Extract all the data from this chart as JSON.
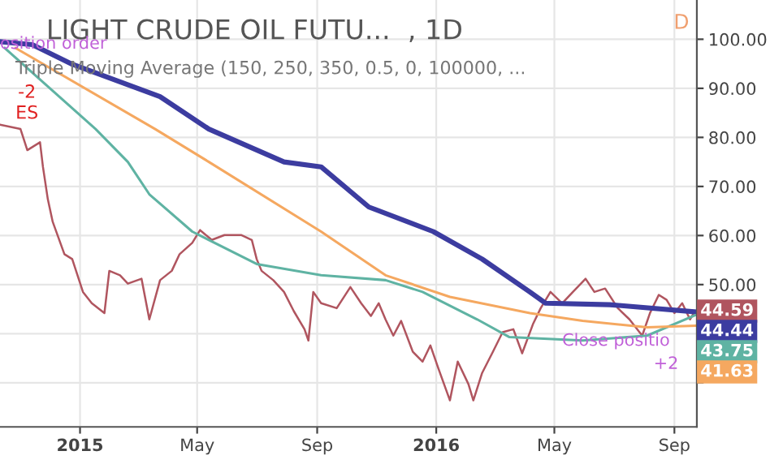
{
  "chart_data": {
    "type": "line",
    "title": "LIGHT CRUDE OIL FUTU...  , 1D",
    "subtitle": "Triple Moving Average (150, 250, 350, 0.5, 0, 100000, ...",
    "series": [
      {
        "color": "#b0555f",
        "x": [
          "2014-10-11",
          "2014-11-01",
          "2014-11-08",
          "2014-11-21",
          "2014-11-24",
          "2014-11-29",
          "2014-12-04",
          "2014-12-16",
          "2014-12-24",
          "2015-01-04",
          "2015-01-13",
          "2015-01-26",
          "2015-01-31",
          "2015-02-11",
          "2015-02-19",
          "2015-03-05",
          "2015-03-13",
          "2015-03-24",
          "2015-04-05",
          "2015-04-13",
          "2015-04-26",
          "2015-05-04",
          "2015-05-16",
          "2015-05-29",
          "2015-06-15",
          "2015-06-26",
          "2015-07-01",
          "2015-07-06",
          "2015-07-18",
          "2015-07-29",
          "2015-08-08",
          "2015-08-19",
          "2015-08-23",
          "2015-08-28",
          "2015-09-05",
          "2015-09-21",
          "2015-10-05",
          "2015-10-16",
          "2015-10-26",
          "2015-11-03",
          "2015-11-10",
          "2015-11-18",
          "2015-11-26",
          "2015-12-08",
          "2015-12-18",
          "2015-12-26",
          "2016-01-03",
          "2016-01-15",
          "2016-01-23",
          "2016-02-03",
          "2016-02-08",
          "2016-02-17",
          "2016-02-28",
          "2016-03-09",
          "2016-03-20",
          "2016-03-29",
          "2016-04-09",
          "2016-04-17",
          "2016-04-27",
          "2016-05-09",
          "2016-05-20",
          "2016-06-02",
          "2016-06-11",
          "2016-06-22",
          "2016-07-05",
          "2016-07-17",
          "2016-07-30",
          "2016-08-07",
          "2016-08-16",
          "2016-08-24",
          "2016-09-01",
          "2016-09-09",
          "2016-09-17",
          "2016-09-22"
        ],
        "values": [
          82.6,
          81.7,
          77.4,
          79,
          74,
          67.4,
          62.8,
          56.2,
          55.2,
          48.5,
          46.2,
          44.2,
          52.8,
          51.9,
          50.2,
          51.2,
          42.9,
          50.9,
          52.8,
          56.2,
          58.5,
          61.1,
          59.1,
          60.1,
          60.1,
          59.1,
          55.2,
          52.8,
          50.9,
          48.5,
          44.6,
          40.9,
          38.6,
          48.5,
          46.2,
          45.2,
          49.5,
          46.2,
          43.6,
          46.2,
          42.9,
          39.6,
          42.6,
          36.3,
          34.3,
          37.6,
          33.0,
          26.4,
          34.3,
          29.7,
          26.4,
          32.0,
          36.3,
          40.3,
          40.9,
          36.0,
          41.9,
          45.2,
          48.5,
          46.2,
          48.5,
          51.2,
          48.5,
          49.2,
          45.2,
          42.9,
          39.6,
          44.2,
          47.9,
          46.9,
          44.2,
          46.2,
          42.9,
          44.59
        ],
        "value_labels": [
          null,
          null,
          null,
          null,
          null,
          null,
          null,
          null,
          null,
          null,
          null,
          null,
          null,
          null,
          null,
          null,
          null,
          null,
          null,
          null,
          null,
          null,
          null,
          null,
          null,
          null,
          null,
          null,
          null,
          null,
          null,
          null,
          null,
          null,
          null,
          null,
          null,
          null,
          null,
          null,
          null,
          null,
          null,
          null,
          null,
          null,
          null,
          null,
          null,
          null,
          null,
          null,
          null,
          null,
          null,
          null,
          null,
          null,
          null,
          null,
          null,
          null,
          null,
          null,
          null,
          null,
          null,
          null,
          null,
          null,
          null,
          null,
          null,
          "44.59"
        ]
      },
      {
        "color": "#3c3ca0",
        "x": [
          "2014-10-11",
          "2014-11-13",
          "2014-12-24",
          "2015-03-24",
          "2015-05-13",
          "2015-07-29",
          "2015-09-05",
          "2015-10-24",
          "2015-12-29",
          "2016-02-17",
          "2016-04-06",
          "2016-04-22",
          "2016-06-27",
          "2016-09-22"
        ],
        "values": [
          99.5,
          98.9,
          94.9,
          88.3,
          81.7,
          75,
          74,
          65.8,
          60.8,
          55.2,
          48.5,
          46.2,
          45.9,
          44.44
        ],
        "value_labels": [
          null,
          null,
          null,
          null,
          null,
          null,
          null,
          null,
          null,
          null,
          null,
          null,
          null,
          "44.44"
        ]
      },
      {
        "color": "#5fb3a3",
        "x": [
          "2014-10-16",
          "2015-01-17",
          "2015-02-19",
          "2015-03-13",
          "2015-04-26",
          "2015-07-01",
          "2015-09-05",
          "2015-11-10",
          "2015-12-18",
          "2016-02-12",
          "2016-03-16",
          "2016-05-30",
          "2016-08-04",
          "2016-09-22"
        ],
        "values": [
          98.2,
          81.7,
          75,
          68.4,
          60.8,
          54.2,
          51.9,
          50.9,
          48.5,
          42.9,
          39.3,
          38.6,
          39.6,
          43.75
        ],
        "value_labels": [
          null,
          null,
          null,
          null,
          null,
          null,
          null,
          null,
          null,
          null,
          null,
          null,
          null,
          "43.75"
        ]
      },
      {
        "color": "#f5a860",
        "x": [
          "2014-10-27",
          "2015-03-19",
          "2015-05-13",
          "2015-09-05",
          "2015-11-10",
          "2016-01-15",
          "2016-04-06",
          "2016-05-30",
          "2016-08-04",
          "2016-09-22"
        ],
        "values": [
          98.2,
          81.7,
          75,
          60.8,
          51.9,
          47.5,
          44.2,
          42.6,
          41.3,
          41.63
        ],
        "value_labels": [
          null,
          null,
          null,
          null,
          null,
          null,
          null,
          null,
          null,
          "41.63"
        ]
      }
    ],
    "xlim": [
      "2014-10-11",
      "2016-09-24"
    ],
    "xticks": [
      {
        "value": "2015-01-01",
        "label": "2015"
      },
      {
        "value": "2015-05-01",
        "label": "May"
      },
      {
        "value": "2015-09-01",
        "label": "Sep"
      },
      {
        "value": "2016-01-01",
        "label": "2016"
      },
      {
        "value": "2016-05-01",
        "label": "May"
      },
      {
        "value": "2016-09-01",
        "label": "Sep"
      }
    ],
    "ylim": [
      21,
      108
    ],
    "yticks": [
      {
        "value": 30,
        "label": null
      },
      {
        "value": 40,
        "label": null
      },
      {
        "value": 50,
        "label": "50.00"
      },
      {
        "value": 60,
        "label": "60.00"
      },
      {
        "value": 70,
        "label": "70.00"
      },
      {
        "value": 80,
        "label": "80.00"
      },
      {
        "value": 90,
        "label": "90.00"
      },
      {
        "value": 100,
        "label": "100.00"
      }
    ],
    "grid": true,
    "annotations": [
      "osition order",
      "-2",
      "ES",
      "Close positio",
      "+2",
      "D"
    ]
  }
}
